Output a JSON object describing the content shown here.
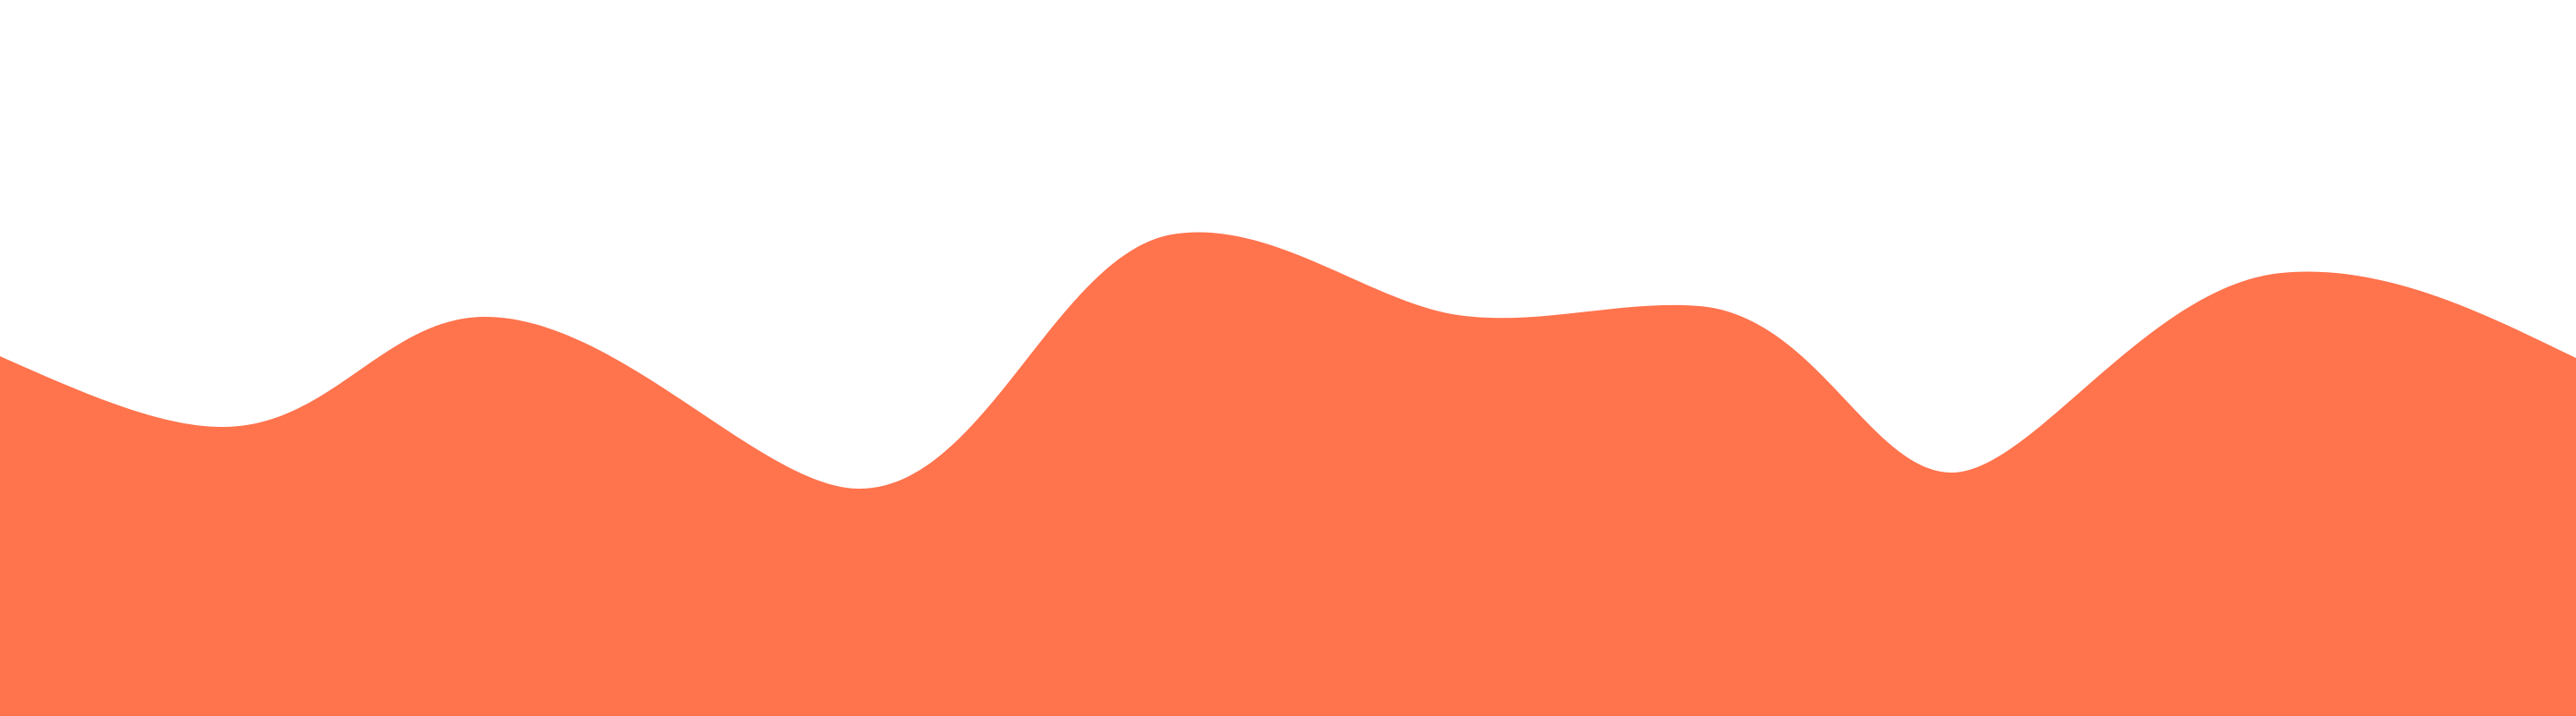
{
  "background_color": "#ffffff",
  "wave": {
    "fill_color": "#ff734d"
  }
}
